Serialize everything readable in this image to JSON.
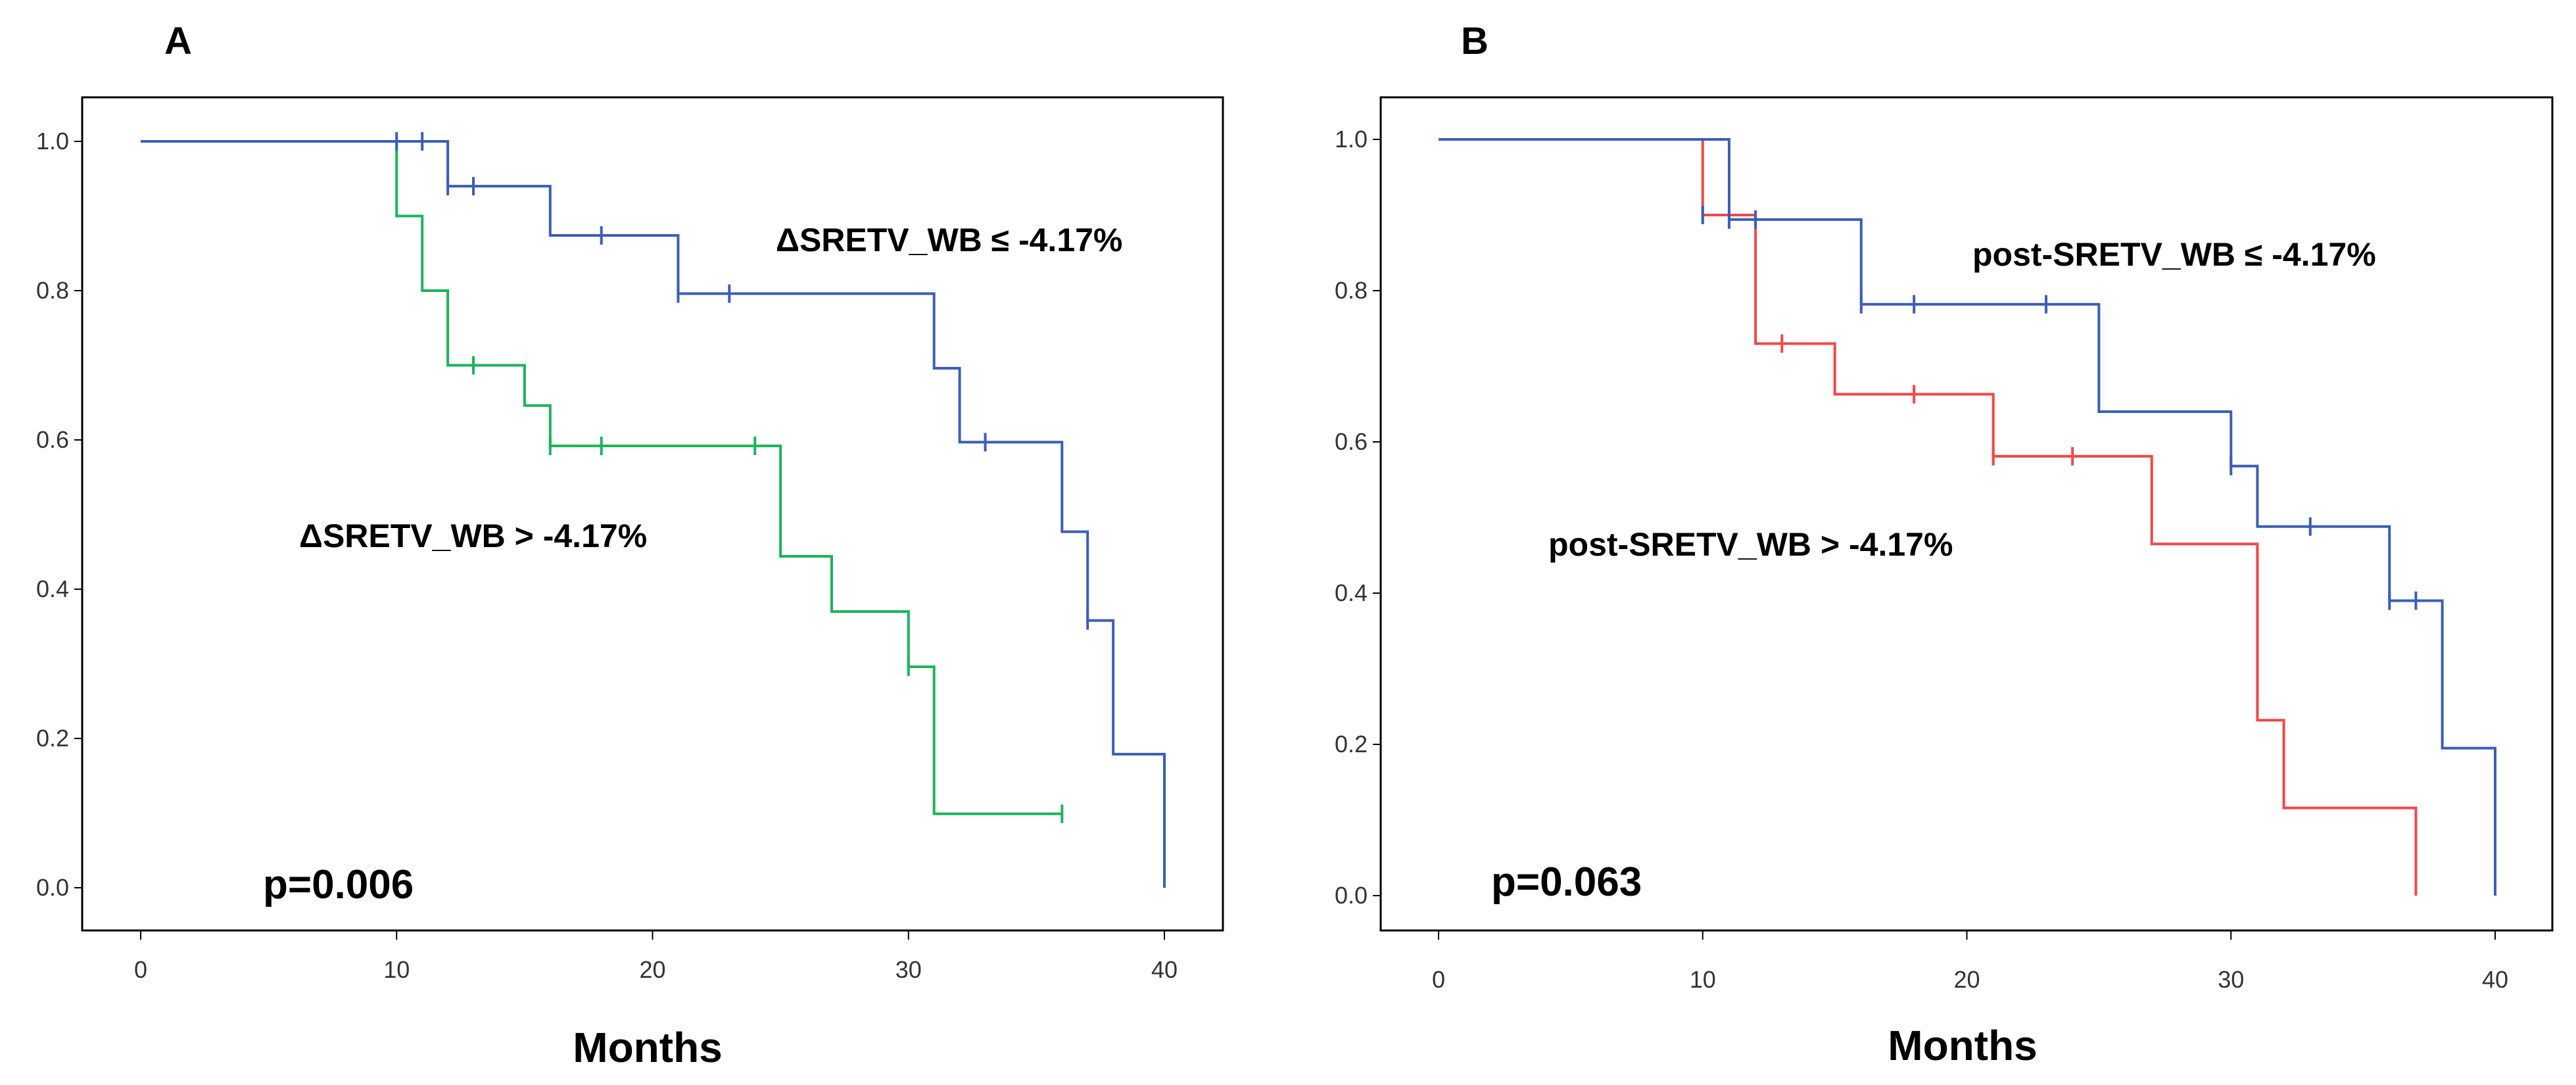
{
  "chart_data": [
    {
      "type": "line",
      "panel": "A",
      "xlabel": "Months",
      "ylabel": "",
      "xlim": [
        0,
        42
      ],
      "ylim": [
        -0.05,
        1.1
      ],
      "xticks": [
        "0",
        "10",
        "20",
        "30",
        "40"
      ],
      "yticks": [
        "0.0",
        "0.2",
        "0.4",
        "0.6",
        "0.8",
        "1.0"
      ],
      "annotation": "p=0.006",
      "series": [
        {
          "name": "ΔSRETV_WB ≤ -4.17%",
          "color": "#3b5fb5",
          "steps": [
            [
              0,
              1.0
            ],
            [
              12,
              0.94
            ],
            [
              16,
              0.874
            ],
            [
              21,
              0.796
            ],
            [
              31,
              0.696
            ],
            [
              32,
              0.597
            ],
            [
              36,
              0.477
            ],
            [
              37,
              0.358
            ],
            [
              38,
              0.179
            ],
            [
              40,
              0.0
            ]
          ],
          "censored": [
            [
              10,
              1.0
            ],
            [
              11,
              1.0
            ],
            [
              12,
              0.94
            ],
            [
              13,
              0.94
            ],
            [
              18,
              0.874
            ],
            [
              21,
              0.796
            ],
            [
              23,
              0.796
            ],
            [
              33,
              0.597
            ],
            [
              37,
              0.358
            ]
          ]
        },
        {
          "name": "ΔSRETV_WB > -4.17%",
          "color": "#1db35c",
          "steps": [
            [
              0,
              1.0
            ],
            [
              10,
              0.9
            ],
            [
              11,
              0.8
            ],
            [
              12,
              0.7
            ],
            [
              15,
              0.646
            ],
            [
              16,
              0.592
            ],
            [
              25,
              0.444
            ],
            [
              27,
              0.37
            ],
            [
              30,
              0.296
            ],
            [
              31,
              0.099
            ],
            [
              36,
              0.099
            ]
          ],
          "censored": [
            [
              13,
              0.7
            ],
            [
              16,
              0.592
            ],
            [
              18,
              0.592
            ],
            [
              24,
              0.592
            ],
            [
              30,
              0.296
            ],
            [
              36,
              0.099
            ]
          ]
        }
      ]
    },
    {
      "type": "line",
      "panel": "B",
      "xlabel": "Months",
      "ylabel": "",
      "xlim": [
        0,
        42
      ],
      "ylim": [
        -0.05,
        1.1
      ],
      "xticks": [
        "0",
        "10",
        "20",
        "30",
        "40"
      ],
      "yticks": [
        "0.0",
        "0.2",
        "0.4",
        "0.6",
        "0.8",
        "1.0"
      ],
      "annotation": "p=0.063",
      "series": [
        {
          "name": "post-SRETV_WB ≤ -4.17%",
          "color": "#3b5fb5",
          "steps": [
            [
              0,
              1.0
            ],
            [
              11,
              0.894
            ],
            [
              16,
              0.782
            ],
            [
              25,
              0.64
            ],
            [
              30,
              0.568
            ],
            [
              31,
              0.488
            ],
            [
              36,
              0.39
            ],
            [
              38,
              0.195
            ],
            [
              40,
              0.0
            ]
          ],
          "censored": [
            [
              10,
              0.9
            ],
            [
              11,
              0.894
            ],
            [
              12,
              0.894
            ],
            [
              16,
              0.782
            ],
            [
              18,
              0.782
            ],
            [
              23,
              0.782
            ],
            [
              30,
              0.568
            ],
            [
              33,
              0.488
            ],
            [
              36,
              0.39
            ],
            [
              37,
              0.39
            ]
          ]
        },
        {
          "name": "post-SRETV_WB > -4.17%",
          "color": "#f04848",
          "steps": [
            [
              0,
              1.0
            ],
            [
              10,
              0.9
            ],
            [
              12,
              0.73
            ],
            [
              15,
              0.663
            ],
            [
              21,
              0.581
            ],
            [
              27,
              0.465
            ],
            [
              31,
              0.232
            ],
            [
              32,
              0.116
            ],
            [
              37,
              0.0
            ]
          ],
          "censored": [
            [
              10,
              0.9
            ],
            [
              13,
              0.73
            ],
            [
              18,
              0.663
            ],
            [
              21,
              0.581
            ],
            [
              24,
              0.581
            ]
          ]
        }
      ]
    }
  ]
}
